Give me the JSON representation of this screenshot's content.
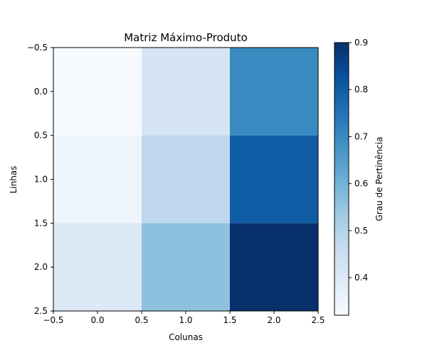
{
  "chart_data": {
    "type": "heatmap",
    "title": "Matriz Máximo-Produto",
    "xlabel": "Colunas",
    "ylabel": "Linhas",
    "colorbar_label": "Grau de Pertinência",
    "colormap": "Blues",
    "vmin": 0.32,
    "vmax": 0.9,
    "values": [
      [
        0.32,
        0.42,
        0.7
      ],
      [
        0.35,
        0.48,
        0.8
      ],
      [
        0.4,
        0.56,
        0.9
      ]
    ],
    "xlim": [
      -0.5,
      2.5
    ],
    "ylim": [
      2.5,
      -0.5
    ],
    "x_ticks": [
      "−0.5",
      "0.0",
      "0.5",
      "1.0",
      "1.5",
      "2.0",
      "2.5"
    ],
    "y_ticks": [
      "−0.5",
      "0.0",
      "0.5",
      "1.0",
      "1.5",
      "2.0",
      "2.5"
    ],
    "colorbar_ticks": [
      "0.4",
      "0.5",
      "0.6",
      "0.7",
      "0.8",
      "0.9"
    ],
    "colorbar_tick_values": [
      0.4,
      0.5,
      0.6,
      0.7,
      0.8,
      0.9
    ]
  }
}
